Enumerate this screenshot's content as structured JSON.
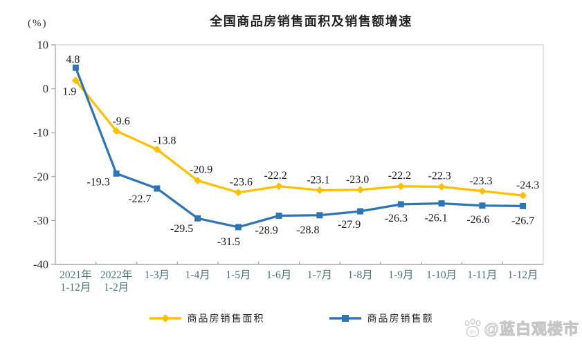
{
  "title": "全国商品房销售面积及销售额增速",
  "y_axis_unit": "(%)",
  "watermark": {
    "text": "@蓝白观楼市",
    "icon": "paw-icon"
  },
  "chart_data": {
    "type": "line",
    "title": "全国商品房销售面积及销售额增速",
    "ylabel": "(%)",
    "xlabel": "",
    "ylim": [
      -40,
      10
    ],
    "yticks": [
      10,
      0,
      -10,
      -20,
      -30,
      -40
    ],
    "grid": false,
    "legend_position": "bottom",
    "categories": [
      [
        "2021年",
        "1-12月"
      ],
      [
        "2022年",
        "1-2月"
      ],
      [
        "1-3月"
      ],
      [
        "1-4月"
      ],
      [
        "1-5月"
      ],
      [
        "1-6月"
      ],
      [
        "1-7月"
      ],
      [
        "1-8月"
      ],
      [
        "1-9月"
      ],
      [
        "1-10月"
      ],
      [
        "1-11月"
      ],
      [
        "1-12月"
      ]
    ],
    "series": [
      {
        "name": "商品房销售面积",
        "color": "#FFC000",
        "marker": "diamond",
        "values": [
          1.9,
          -9.6,
          -13.8,
          -20.9,
          -23.6,
          -22.2,
          -23.1,
          -23.0,
          -22.2,
          -22.3,
          -23.3,
          -24.3
        ],
        "labels": [
          "1.9",
          "-9.6",
          "-13.8",
          "-20.9",
          "-23.6",
          "-22.2",
          "-23.1",
          "-23.0",
          "-22.2",
          "-22.3",
          "-23.3",
          "-24.3"
        ]
      },
      {
        "name": "商品房销售额",
        "color": "#2E75B6",
        "marker": "square",
        "values": [
          4.8,
          -19.3,
          -22.7,
          -29.5,
          -31.5,
          -28.9,
          -28.8,
          -27.9,
          -26.3,
          -26.1,
          -26.6,
          -26.7
        ],
        "labels": [
          "4.8",
          "-19.3",
          "-22.7",
          "-29.5",
          "-31.5",
          "-28.9",
          "-28.8",
          "-27.9",
          "-26.3",
          "-26.1",
          "-26.6",
          "-26.7"
        ]
      }
    ]
  }
}
